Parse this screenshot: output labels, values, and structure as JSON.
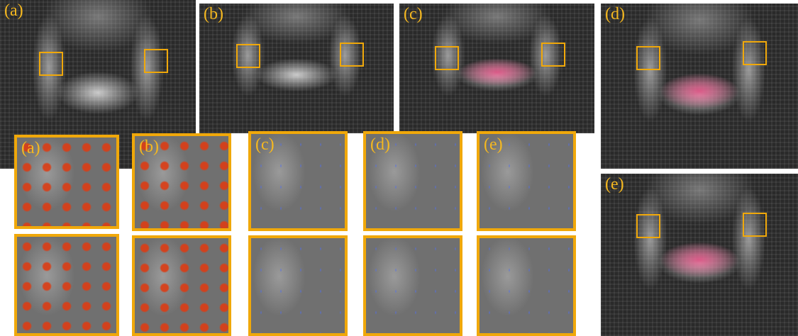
{
  "panels": [
    "(a)",
    "(b)",
    "(c)",
    "(d)",
    "(e)"
  ],
  "zooms": [
    "(a)",
    "(b)",
    "(c)",
    "(d)",
    "(e)"
  ]
}
